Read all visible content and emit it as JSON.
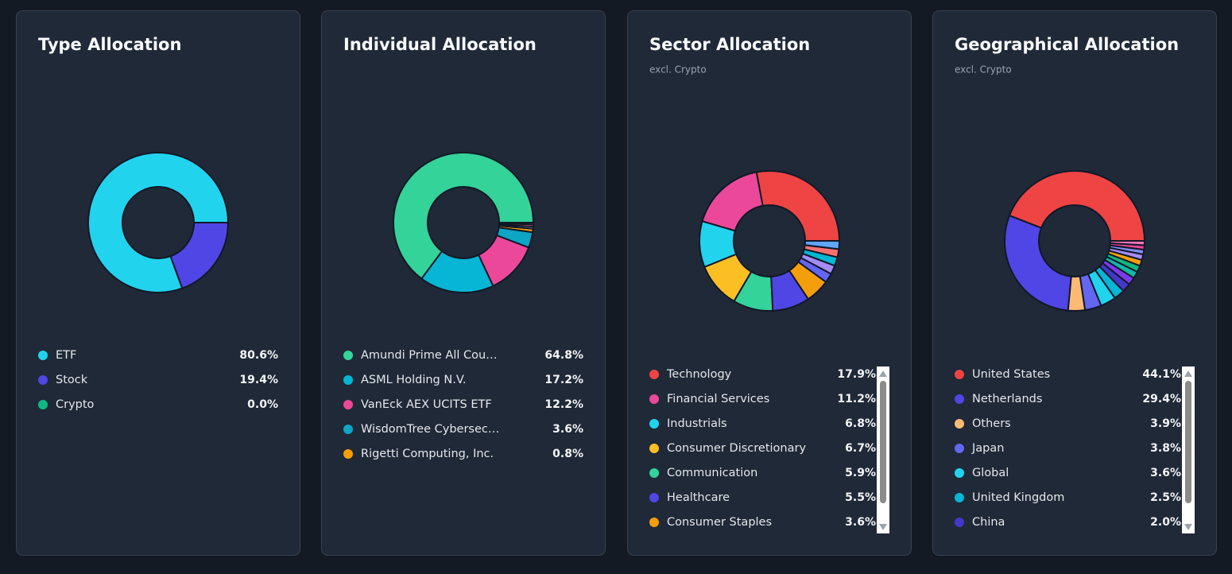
{
  "chart_data": [
    {
      "type": "pie",
      "title": "Type Allocation",
      "categories": [
        "ETF",
        "Stock",
        "Crypto"
      ],
      "values": [
        80.6,
        19.4,
        0.0
      ],
      "value_labels": [
        "80.6%",
        "19.4%",
        "0.0%"
      ],
      "colors": [
        "#22d3ee",
        "#4f46e5",
        "#10b981"
      ]
    },
    {
      "type": "pie",
      "title": "Individual Allocation",
      "categories": [
        "Amundi Prime All Cou…",
        "ASML Holding N.V.",
        "VanEck AEX UCITS ETF",
        "WisdomTree Cybersec…",
        "Rigetti Computing, Inc.",
        null,
        null,
        null
      ],
      "values": [
        64.8,
        17.2,
        12.2,
        3.6,
        0.8,
        0.5,
        0.5,
        0.4
      ],
      "value_labels": [
        "64.8%",
        "17.2%",
        "12.2%",
        "3.6%",
        "0.8%",
        null,
        null,
        null
      ],
      "colors": [
        "#34d399",
        "#06b6d4",
        "#ec4899",
        "#0ea5c6",
        "#f59e0b",
        "#a78bfa",
        "#f87171",
        "#6366f1"
      ]
    },
    {
      "type": "pie",
      "title": "Sector Allocation",
      "subtitle": "excl. Crypto",
      "categories": [
        "Technology",
        "Financial Services",
        "Industrials",
        "Consumer Discretionary",
        "Communication",
        "Healthcare",
        "Consumer Staples",
        null,
        null,
        null,
        null,
        null
      ],
      "values": [
        17.9,
        11.2,
        6.8,
        6.7,
        5.9,
        5.5,
        3.6,
        1.4,
        1.3,
        1.3,
        1.2,
        1.2
      ],
      "value_labels": [
        "17.9%",
        "11.2%",
        "6.8%",
        "6.7%",
        "5.9%",
        "5.5%",
        "3.6%",
        null,
        null,
        null,
        null,
        null
      ],
      "colors": [
        "#ef4444",
        "#ec4899",
        "#22d3ee",
        "#fbbf24",
        "#34d399",
        "#4f46e5",
        "#f59e0b",
        "#6366f1",
        "#a78bfa",
        "#06b6d4",
        "#f87171",
        "#60a5fa"
      ]
    },
    {
      "type": "pie",
      "title": "Geographical Allocation",
      "subtitle": "excl. Crypto",
      "categories": [
        "United States",
        "Netherlands",
        "Others",
        "Japan",
        "Global",
        "United Kingdom",
        "China",
        null,
        null,
        null,
        null,
        null,
        null,
        null,
        null
      ],
      "values": [
        44.1,
        29.4,
        3.9,
        3.8,
        3.6,
        2.5,
        2.0,
        1.8,
        1.6,
        1.5,
        1.4,
        1.3,
        1.1,
        1.0,
        1.0
      ],
      "value_labels": [
        "44.1%",
        "29.4%",
        "3.9%",
        "3.8%",
        "3.6%",
        "2.5%",
        "2.0%",
        null,
        null,
        null,
        null,
        null,
        null,
        null,
        null
      ],
      "colors": [
        "#ef4444",
        "#4f46e5",
        "#fdba74",
        "#6366f1",
        "#22d3ee",
        "#06b6d4",
        "#4338ca",
        "#7c3aed",
        "#14b8a6",
        "#10b981",
        "#f59e0b",
        "#a78bfa",
        "#818cf8",
        "#ec4899",
        "#f472b6"
      ]
    }
  ]
}
